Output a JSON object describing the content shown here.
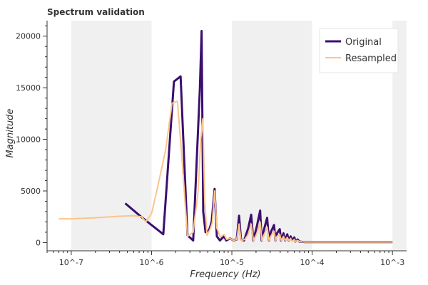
{
  "chart_data": {
    "type": "line",
    "title": "Spectrum validation",
    "xlabel": "Frequency (Hz)",
    "ylabel": "Magnitude",
    "x_scale": "log",
    "xlim": [
      5e-08,
      0.0015
    ],
    "ylim": [
      -800,
      21500
    ],
    "x_tick_labels": [
      "10^-7",
      "10^-6",
      "10^-5",
      "10^-4",
      "10^-3"
    ],
    "x_tick_values": [
      1e-07,
      1e-06,
      1e-05,
      0.0001,
      0.001
    ],
    "y_tick_labels": [
      "0",
      "5000",
      "10000",
      "15000",
      "20000"
    ],
    "y_tick_values": [
      0,
      5000,
      10000,
      15000,
      20000
    ],
    "grid": false,
    "shaded_decades": [
      [
        1e-07,
        1e-06
      ],
      [
        1e-05,
        0.0001
      ],
      [
        0.001,
        0.0015
      ]
    ],
    "legend_position": "top-right",
    "series": [
      {
        "name": "Original",
        "color": "#3b0f70",
        "x": [
          4.7e-07,
          7.4e-07,
          1.4e-06,
          1.9e-06,
          2.3e-06,
          2.8e-06,
          3.3e-06,
          4e-06,
          4.2e-06,
          4.4e-06,
          4.7e-06,
          5.2e-06,
          5.6e-06,
          6.1e-06,
          6.5e-06,
          7.1e-06,
          8e-06,
          8.5e-06,
          9.5e-06,
          1.05e-05,
          1.15e-05,
          1.23e-05,
          1.3e-05,
          1.42e-05,
          1.6e-05,
          1.74e-05,
          1.85e-05,
          2.05e-05,
          2.25e-05,
          2.35e-05,
          2.5e-05,
          2.75e-05,
          2.9e-05,
          3.05e-05,
          3.35e-05,
          3.5e-05,
          3.65e-05,
          3.95e-05,
          4.1e-05,
          4.4e-05,
          4.6e-05,
          4.9e-05,
          5.1e-05,
          5.4e-05,
          5.6e-05,
          6e-05,
          6.2e-05,
          6.6e-05,
          6.9e-05,
          8e-05,
          0.0001,
          0.0003,
          0.001
        ],
        "y": [
          3800,
          2500,
          800,
          15600,
          16100,
          700,
          200,
          15000,
          20500,
          3000,
          1000,
          1200,
          2000,
          5200,
          600,
          200,
          600,
          200,
          400,
          200,
          300,
          2600,
          300,
          200,
          1400,
          2700,
          200,
          1600,
          3100,
          200,
          1200,
          2400,
          200,
          1000,
          1700,
          200,
          900,
          1300,
          200,
          900,
          200,
          800,
          200,
          600,
          200,
          500,
          100,
          300,
          100,
          50,
          50,
          50,
          50
        ]
      },
      {
        "name": "Resampled",
        "color": "#fdc48a",
        "x": [
          7e-08,
          1e-07,
          2e-07,
          4e-07,
          6e-07,
          7.5e-07,
          8.5e-07,
          1e-06,
          1.2e-06,
          1.5e-06,
          1.8e-06,
          2.1e-06,
          2.4e-06,
          2.8e-06,
          3.3e-06,
          3.8e-06,
          4.1e-06,
          4.35e-06,
          4.6e-06,
          4.9e-06,
          5.3e-06,
          5.7e-06,
          6.1e-06,
          6.5e-06,
          7.2e-06,
          8e-06,
          8.6e-06,
          9.5e-06,
          1.05e-05,
          1.15e-05,
          1.23e-05,
          1.3e-05,
          1.45e-05,
          1.6e-05,
          1.74e-05,
          1.86e-05,
          2.05e-05,
          2.25e-05,
          2.37e-05,
          2.5e-05,
          2.75e-05,
          2.9e-05,
          3.05e-05,
          3.35e-05,
          3.52e-05,
          3.65e-05,
          3.95e-05,
          4.12e-05,
          4.4e-05,
          4.6e-05,
          4.9e-05,
          5.1e-05,
          5.4e-05,
          5.6e-05,
          6e-05,
          6.2e-05,
          6.6e-05,
          6.9e-05,
          8e-05,
          0.0001,
          0.0003,
          0.001
        ],
        "y": [
          2300,
          2300,
          2400,
          2550,
          2600,
          2500,
          2000,
          2800,
          5500,
          9000,
          13500,
          13700,
          8000,
          600,
          1000,
          5000,
          10000,
          12000,
          4000,
          700,
          1200,
          1900,
          5000,
          1400,
          500,
          800,
          300,
          400,
          200,
          300,
          1800,
          200,
          300,
          800,
          1800,
          200,
          900,
          2000,
          200,
          700,
          1500,
          200,
          600,
          1100,
          200,
          600,
          800,
          200,
          600,
          200,
          500,
          200,
          400,
          100,
          300,
          100,
          200,
          100,
          50,
          50,
          50,
          50
        ]
      }
    ]
  }
}
